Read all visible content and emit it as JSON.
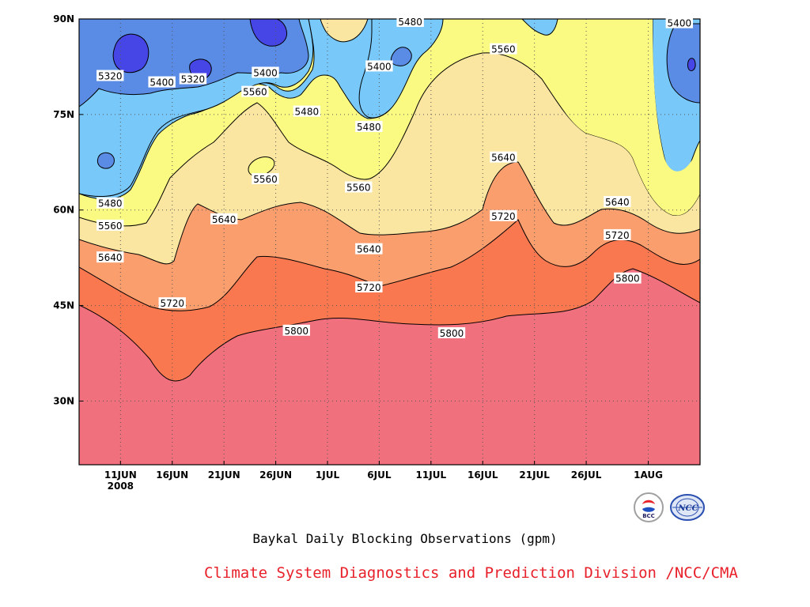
{
  "title": "Baykal Daily Blocking Observations (gpm)",
  "credit": "Climate System Diagnostics and Prediction Division /NCC/CMA",
  "logos": [
    {
      "name": "bcc-logo",
      "text": "BCC"
    },
    {
      "name": "ncc-logo",
      "text": "NCC"
    }
  ],
  "chart_data": {
    "type": "contour",
    "title": "Baykal Daily Blocking Observations (gpm)",
    "x_axis": {
      "range": [
        "2008-06-07",
        "2008-08-06"
      ],
      "ticks": [
        {
          "date": "2008-06-11",
          "label": "11JUN",
          "sublabel": "2008"
        },
        {
          "date": "2008-06-16",
          "label": "16JUN"
        },
        {
          "date": "2008-06-21",
          "label": "21JUN"
        },
        {
          "date": "2008-06-26",
          "label": "26JUN"
        },
        {
          "date": "2008-07-01",
          "label": "1JUL"
        },
        {
          "date": "2008-07-06",
          "label": "6JUL"
        },
        {
          "date": "2008-07-11",
          "label": "11JUL"
        },
        {
          "date": "2008-07-16",
          "label": "16JUL"
        },
        {
          "date": "2008-07-21",
          "label": "21JUL"
        },
        {
          "date": "2008-07-26",
          "label": "26JUL"
        },
        {
          "date": "2008-08-01",
          "label": "1AUG"
        }
      ]
    },
    "y_axis": {
      "range": [
        20,
        90
      ],
      "unit": "degrees north",
      "ticks": [
        {
          "value": 30,
          "label": "30N"
        },
        {
          "value": 45,
          "label": "45N"
        },
        {
          "value": 60,
          "label": "60N"
        },
        {
          "value": 75,
          "label": "75N"
        },
        {
          "value": 90,
          "label": "90N"
        }
      ]
    },
    "grid": "dotted",
    "levels": [
      5320,
      5400,
      5480,
      5560,
      5640,
      5720,
      5800
    ],
    "colors": {
      "lt5320": "#4646e6",
      "5320-5400": "#5a8ce6",
      "5400-5480": "#78c8fa",
      "5480-5560": "#fafa82",
      "5560-5640": "#fae6a0",
      "5640-5720": "#fa9e6e",
      "5720-5800": "#fa7850",
      "gt5800": "#f0707e"
    },
    "contour_labels": [
      {
        "value": "5320",
        "date": "2008-06-10",
        "lat": 81.0
      },
      {
        "value": "5400",
        "date": "2008-06-15",
        "lat": 80.0
      },
      {
        "value": "5320",
        "date": "2008-06-18",
        "lat": 80.5
      },
      {
        "value": "5400",
        "date": "2008-06-25",
        "lat": 81.5
      },
      {
        "value": "5560",
        "date": "2008-06-24",
        "lat": 78.5
      },
      {
        "value": "5480",
        "date": "2008-06-29",
        "lat": 75.4
      },
      {
        "value": "5480",
        "date": "2008-07-09",
        "lat": 89.5
      },
      {
        "value": "5400",
        "date": "2008-07-06",
        "lat": 82.5
      },
      {
        "value": "5480",
        "date": "2008-07-05",
        "lat": 73.0
      },
      {
        "value": "5560",
        "date": "2008-07-18",
        "lat": 85.2
      },
      {
        "value": "5400",
        "date": "2008-08-04",
        "lat": 89.3
      },
      {
        "value": "5480",
        "date": "2008-06-10",
        "lat": 61.0
      },
      {
        "value": "5560",
        "date": "2008-06-10",
        "lat": 57.5
      },
      {
        "value": "5640",
        "date": "2008-06-10",
        "lat": 52.5
      },
      {
        "value": "5560",
        "date": "2008-06-25",
        "lat": 64.8
      },
      {
        "value": "5640",
        "date": "2008-06-21",
        "lat": 58.5
      },
      {
        "value": "5560",
        "date": "2008-07-04",
        "lat": 63.5
      },
      {
        "value": "5640",
        "date": "2008-07-05",
        "lat": 53.8
      },
      {
        "value": "5640",
        "date": "2008-07-18",
        "lat": 68.2
      },
      {
        "value": "5720",
        "date": "2008-07-18",
        "lat": 59.0
      },
      {
        "value": "5640",
        "date": "2008-07-29",
        "lat": 61.2
      },
      {
        "value": "5720",
        "date": "2008-07-29",
        "lat": 56.0
      },
      {
        "value": "5800",
        "date": "2008-07-30",
        "lat": 49.2
      },
      {
        "value": "5720",
        "date": "2008-06-16",
        "lat": 45.3
      },
      {
        "value": "5720",
        "date": "2008-07-05",
        "lat": 47.8
      },
      {
        "value": "5800",
        "date": "2008-06-28",
        "lat": 41.0
      },
      {
        "value": "5800",
        "date": "2008-07-13",
        "lat": 40.6
      }
    ]
  }
}
